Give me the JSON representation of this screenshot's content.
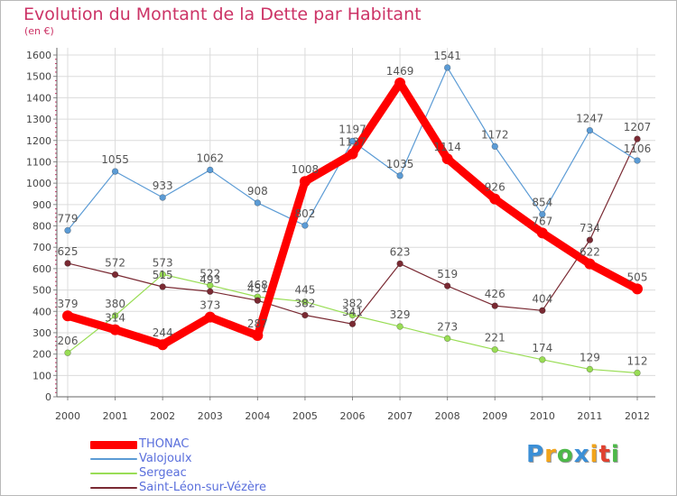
{
  "header": {
    "title": "Evolution du Montant de la Dette par Habitant",
    "subtitle": "(en €)"
  },
  "logo": {
    "text": "Proxiti",
    "letters": [
      {
        "char": "P",
        "color": "#3b8fd6"
      },
      {
        "char": "r",
        "color": "#f2a41a"
      },
      {
        "char": "o",
        "color": "#4cb848"
      },
      {
        "char": "x",
        "color": "#3b8fd6"
      },
      {
        "char": "i",
        "color": "#f2a41a"
      },
      {
        "char": "t",
        "color": "#e0412f"
      },
      {
        "char": "i",
        "color": "#4cb848"
      }
    ]
  },
  "chart_data": {
    "type": "line",
    "title": "Evolution du Montant de la Dette par Habitant",
    "subtitle": "(en €)",
    "xlabel": "",
    "ylabel": "",
    "x": [
      2000,
      2001,
      2002,
      2003,
      2004,
      2005,
      2006,
      2007,
      2008,
      2009,
      2010,
      2011,
      2012
    ],
    "ylim": [
      0,
      1600
    ],
    "yticks": [
      0,
      100,
      200,
      300,
      400,
      500,
      600,
      700,
      800,
      900,
      1000,
      1100,
      1200,
      1300,
      1400,
      1500,
      1600
    ],
    "grid": true,
    "legend_position": "bottom-left",
    "series": [
      {
        "name": "THONAC",
        "color": "#ff0000",
        "values": [
          379,
          314,
          244,
          373,
          287,
          1008,
          1137,
          1469,
          1114,
          926,
          767,
          622,
          505
        ]
      },
      {
        "name": "Valojoulx",
        "color": "#5b9bd5",
        "values": [
          779,
          1055,
          933,
          1062,
          908,
          802,
          1197,
          1035,
          1541,
          1172,
          854,
          1247,
          1106
        ]
      },
      {
        "name": "Sergeac",
        "color": "#99dd55",
        "values": [
          206,
          380,
          573,
          522,
          468,
          445,
          382,
          329,
          273,
          221,
          174,
          129,
          112
        ]
      },
      {
        "name": "Saint-Léon-sur-Vézère",
        "color": "#7a2a33",
        "values": [
          625,
          572,
          515,
          493,
          451,
          382,
          341,
          623,
          519,
          426,
          404,
          734,
          1207
        ]
      }
    ]
  }
}
